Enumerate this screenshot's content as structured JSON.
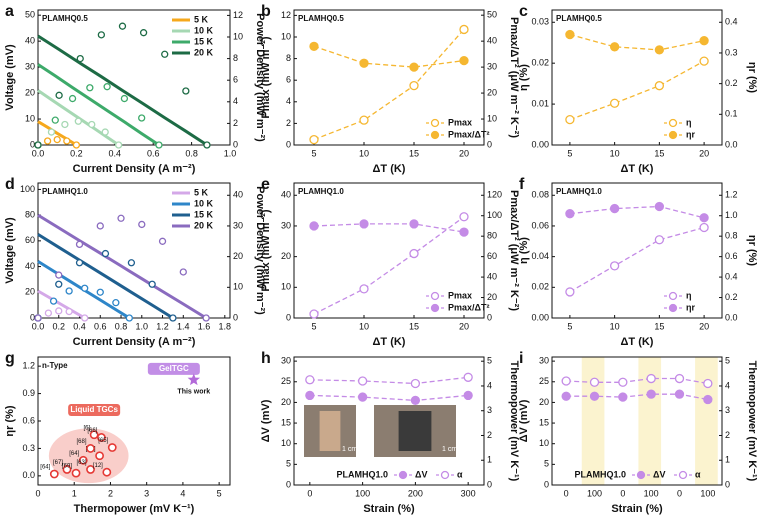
{
  "chart_data": [
    {
      "type": "line",
      "panel": "a",
      "annotation": "PLAMHQ0.5",
      "xlabel": "Current Density (A m⁻²)",
      "ylabel": "Voltage (mV)",
      "y2label": "Power Density (mW m⁻²)",
      "xlim": [
        0,
        1.0
      ],
      "xticks": [
        {
          "value": 0,
          "label": "0.0"
        },
        0.2,
        0.4,
        0.6,
        0.8,
        {
          "value": 1,
          "label": "1.0"
        }
      ],
      "ylim": [
        0,
        52
      ],
      "yticks": [
        0,
        10,
        20,
        30,
        40,
        50
      ],
      "y2lim": [
        0,
        12.5
      ],
      "y2ticks": [
        0,
        2,
        4,
        6,
        8,
        10,
        12
      ],
      "legend": "upper right",
      "series": [
        {
          "name": "5 K",
          "color": "#f6a81c",
          "line": "thick",
          "x": [
            0,
            0.05,
            0.1,
            0.15,
            0.2
          ],
          "values": [
            9,
            6.8,
            4.5,
            2.3,
            0
          ]
        },
        {
          "name": "10 K",
          "color": "#a6d8b3",
          "line": "thick",
          "x": [
            0,
            0.07,
            0.14,
            0.21,
            0.28,
            0.35,
            0.42
          ],
          "values": [
            21,
            17.5,
            14,
            10.5,
            7,
            3.5,
            0
          ]
        },
        {
          "name": "15 K",
          "color": "#3daa6a",
          "line": "thick",
          "x": [
            0,
            0.09,
            0.18,
            0.27,
            0.36,
            0.45,
            0.54,
            0.63
          ],
          "values": [
            31,
            26.6,
            22.1,
            17.7,
            13.3,
            8.9,
            4.4,
            0
          ]
        },
        {
          "name": "20 K",
          "color": "#1d6b45",
          "line": "thick",
          "x": [
            0,
            0.11,
            0.22,
            0.33,
            0.44,
            0.55,
            0.66,
            0.77,
            0.88
          ],
          "values": [
            42,
            36.8,
            31.5,
            26.3,
            21,
            15.8,
            10.5,
            5.3,
            0
          ]
        },
        {
          "color": "#f6a81c",
          "axis": "y2",
          "marker": "open",
          "line": "none",
          "x": [
            0,
            0.05,
            0.1,
            0.15,
            0.2
          ],
          "values": [
            0,
            0.37,
            0.5,
            0.37,
            0
          ]
        },
        {
          "color": "#a6d8b3",
          "axis": "y2",
          "marker": "open",
          "line": "none",
          "x": [
            0,
            0.07,
            0.14,
            0.21,
            0.28,
            0.35,
            0.42
          ],
          "values": [
            0,
            1.2,
            1.9,
            2.2,
            1.9,
            1.2,
            0
          ]
        },
        {
          "color": "#3daa6a",
          "axis": "y2",
          "marker": "open",
          "line": "none",
          "x": [
            0,
            0.09,
            0.18,
            0.27,
            0.36,
            0.45,
            0.54,
            0.63
          ],
          "values": [
            0,
            2.3,
            4.3,
            5.3,
            5.4,
            4.3,
            2.5,
            0
          ]
        },
        {
          "color": "#1d6b45",
          "axis": "y2",
          "marker": "open",
          "line": "none",
          "x": [
            0,
            0.11,
            0.22,
            0.33,
            0.44,
            0.55,
            0.66,
            0.77,
            0.88
          ],
          "values": [
            0,
            4.6,
            8,
            10.2,
            11,
            10.4,
            8.4,
            5,
            0
          ]
        }
      ]
    },
    {
      "type": "line",
      "panel": "b",
      "annotation": "PLAMHQ0.5",
      "xlabel": "ΔT (K)",
      "ylabel": "Pmax (mW m⁻²)",
      "y2label": "Pmax/ΔT² (μW m⁻² K⁻²)",
      "xlim": [
        3,
        22
      ],
      "xticks": [
        5,
        10,
        15,
        20
      ],
      "x": [
        5,
        10,
        15,
        20
      ],
      "ylim": [
        0,
        12.5
      ],
      "yticks": [
        0,
        2,
        4,
        6,
        8,
        10,
        12
      ],
      "y2lim": [
        0,
        52
      ],
      "y2ticks": [
        0,
        10,
        20,
        30,
        40,
        50
      ],
      "legend": "lower right",
      "series": [
        {
          "name": "Pmax",
          "color": "#f5b731",
          "line": "dashed",
          "marker": "open",
          "values": [
            0.5,
            2.3,
            5.5,
            10.7
          ]
        },
        {
          "name": "Pmax/ΔT²",
          "color": "#f5b731",
          "line": "dashed",
          "marker": "filled",
          "axis": "y2",
          "values": [
            38,
            31.5,
            30,
            32.5
          ]
        }
      ]
    },
    {
      "type": "line",
      "panel": "c",
      "annotation": "PLAMHQ0.5",
      "xlabel": "ΔT (K)",
      "ylabel": "η (%)",
      "y2label": "ηr (%)",
      "xlim": [
        3,
        22
      ],
      "xticks": [
        5,
        10,
        15,
        20
      ],
      "x": [
        5,
        10,
        15,
        20
      ],
      "ylim": [
        0,
        0.033
      ],
      "yticks": [
        {
          "value": 0,
          "label": "0.00"
        },
        {
          "value": 0.01,
          "label": "0.01"
        },
        {
          "value": 0.02,
          "label": "0.02"
        },
        {
          "value": 0.03,
          "label": "0.03"
        }
      ],
      "y2lim": [
        0,
        0.44
      ],
      "y2ticks": [
        {
          "value": 0,
          "label": "0.0"
        },
        0.1,
        0.2,
        0.3,
        0.4
      ],
      "legend": "lower right",
      "series": [
        {
          "name": "η",
          "color": "#f5b731",
          "line": "dashed",
          "marker": "open",
          "values": [
            0.0062,
            0.0102,
            0.0145,
            0.0205
          ]
        },
        {
          "name": "ηr",
          "color": "#f5b731",
          "line": "dashed",
          "marker": "filled",
          "axis": "y2",
          "values": [
            0.36,
            0.32,
            0.31,
            0.34
          ]
        }
      ]
    },
    {
      "type": "line",
      "panel": "d",
      "annotation": "PLAMHQ1.0",
      "xlabel": "Current Density (A m⁻²)",
      "ylabel": "Voltage (mV)",
      "y2label": "Power Density (mW m⁻²)",
      "xlim": [
        0,
        1.85
      ],
      "xticks": [
        {
          "value": 0,
          "label": "0.0"
        },
        0.2,
        0.4,
        0.6,
        0.8,
        {
          "value": 1,
          "label": "1.0"
        },
        1.2,
        1.4,
        1.6,
        1.8
      ],
      "ylim": [
        0,
        105
      ],
      "yticks": [
        0,
        20,
        40,
        60,
        80,
        100
      ],
      "y2lim": [
        0,
        44
      ],
      "y2ticks": [
        0,
        10,
        20,
        30,
        40
      ],
      "legend": "upper right",
      "series": [
        {
          "name": "5 K",
          "color": "#d4a8e8",
          "line": "thick",
          "x": [
            0,
            0.1,
            0.2,
            0.3,
            0.45
          ],
          "values": [
            21,
            16.3,
            11.7,
            7,
            0
          ]
        },
        {
          "name": "10 K",
          "color": "#2e86c9",
          "line": "thick",
          "x": [
            0,
            0.15,
            0.3,
            0.45,
            0.6,
            0.75,
            0.88
          ],
          "values": [
            44,
            36.5,
            29,
            21.5,
            14,
            6.5,
            0
          ]
        },
        {
          "name": "15 K",
          "color": "#1f5f8f",
          "line": "thick",
          "x": [
            0,
            0.2,
            0.4,
            0.65,
            0.9,
            1.1,
            1.3
          ],
          "values": [
            65,
            55,
            45,
            32.5,
            20,
            10,
            0
          ]
        },
        {
          "name": "20 K",
          "color": "#8a6bbf",
          "line": "thick",
          "x": [
            0,
            0.2,
            0.4,
            0.6,
            0.8,
            1.0,
            1.2,
            1.4,
            1.62
          ],
          "values": [
            80,
            70.1,
            60.2,
            50.4,
            40.5,
            30.6,
            20.7,
            10.9,
            0
          ]
        },
        {
          "color": "#d4a8e8",
          "axis": "y2",
          "marker": "open",
          "line": "none",
          "x": [
            0,
            0.1,
            0.2,
            0.3,
            0.45
          ],
          "values": [
            0,
            1.6,
            2.3,
            2.1,
            0
          ]
        },
        {
          "color": "#2e86c9",
          "axis": "y2",
          "marker": "open",
          "line": "none",
          "x": [
            0,
            0.15,
            0.3,
            0.45,
            0.6,
            0.75,
            0.88
          ],
          "values": [
            0,
            5.5,
            8.8,
            9.7,
            8.4,
            5,
            0
          ]
        },
        {
          "color": "#1f5f8f",
          "axis": "y2",
          "marker": "open",
          "line": "none",
          "x": [
            0,
            0.2,
            0.4,
            0.65,
            0.9,
            1.1,
            1.3
          ],
          "values": [
            0,
            11,
            18,
            21,
            18,
            11,
            0
          ]
        },
        {
          "color": "#8a6bbf",
          "axis": "y2",
          "marker": "open",
          "line": "none",
          "x": [
            0,
            0.2,
            0.4,
            0.6,
            0.8,
            1.0,
            1.2,
            1.4,
            1.62
          ],
          "values": [
            0,
            14,
            24,
            30,
            32.5,
            30.5,
            25,
            15,
            0
          ]
        }
      ]
    },
    {
      "type": "line",
      "panel": "e",
      "annotation": "PLAMHQ1.0",
      "xlabel": "ΔT (K)",
      "ylabel": "Pmax (mW m⁻²)",
      "y2label": "Pmax/ΔT² (μW m⁻² K⁻²)",
      "xlim": [
        3,
        22
      ],
      "xticks": [
        5,
        10,
        15,
        20
      ],
      "x": [
        5,
        10,
        15,
        20
      ],
      "ylim": [
        0,
        44
      ],
      "yticks": [
        0,
        10,
        20,
        30,
        40
      ],
      "y2lim": [
        0,
        132
      ],
      "y2ticks": [
        0,
        20,
        40,
        60,
        80,
        100,
        120
      ],
      "legend": "lower right",
      "series": [
        {
          "name": "Pmax",
          "color": "#c48be6",
          "line": "dashed",
          "marker": "open",
          "values": [
            1.3,
            9.5,
            21,
            33
          ]
        },
        {
          "name": "Pmax/ΔT²",
          "color": "#c48be6",
          "line": "dashed",
          "marker": "filled",
          "axis": "y2",
          "values": [
            90,
            92,
            92,
            84
          ]
        }
      ]
    },
    {
      "type": "line",
      "panel": "f",
      "annotation": "PLAMHQ1.0",
      "xlabel": "ΔT (K)",
      "ylabel": "η (%)",
      "y2label": "ηr (%)",
      "xlim": [
        3,
        22
      ],
      "xticks": [
        5,
        10,
        15,
        20
      ],
      "x": [
        5,
        10,
        15,
        20
      ],
      "ylim": [
        0,
        0.088
      ],
      "yticks": [
        {
          "value": 0,
          "label": "0.00"
        },
        {
          "value": 0.02,
          "label": "0.02"
        },
        {
          "value": 0.04,
          "label": "0.04"
        },
        {
          "value": 0.06,
          "label": "0.06"
        },
        {
          "value": 0.08,
          "label": "0.08"
        }
      ],
      "y2lim": [
        0,
        1.32
      ],
      "y2ticks": [
        {
          "value": 0,
          "label": "0.0"
        },
        0.2,
        0.4,
        0.6,
        0.8,
        {
          "value": 1,
          "label": "1.0"
        },
        1.2
      ],
      "legend": "lower right",
      "series": [
        {
          "name": "η",
          "color": "#c48be6",
          "line": "dashed",
          "marker": "open",
          "values": [
            0.017,
            0.034,
            0.051,
            0.059
          ]
        },
        {
          "name": "ηr",
          "color": "#c48be6",
          "line": "dashed",
          "marker": "filled",
          "axis": "y2",
          "values": [
            1.02,
            1.07,
            1.09,
            0.98
          ]
        }
      ]
    },
    {
      "type": "scatter",
      "panel": "g",
      "annotation": "n-Type",
      "xlabel": "Thermopower (mV K⁻¹)",
      "ylabel": "ηr (%)",
      "xlim": [
        0,
        5.3
      ],
      "xticks": [
        0,
        1,
        2,
        3,
        4,
        5
      ],
      "ylim": [
        -0.1,
        1.3
      ],
      "yticks": [
        {
          "value": 0,
          "label": "0.0"
        },
        0.3,
        0.6,
        0.9,
        1.2
      ],
      "color": "#e53935",
      "x": [
        0.45,
        0.8,
        1.05,
        1.25,
        1.45,
        1.7,
        1.55,
        1.75,
        1.45,
        2.05,
        1.9
      ],
      "values": [
        0.02,
        0.07,
        0.03,
        0.17,
        0.07,
        0.22,
        0.45,
        0.42,
        0.3,
        0.31,
        0.04
      ],
      "point_labels": [
        "[64]",
        "[67]",
        "[69]",
        "[64]",
        "[63]",
        "[64]",
        "[6]",
        "[66]",
        "[68]",
        "[65]",
        "[12]"
      ],
      "group_labels": [
        "GelTGC",
        "Liquid TGCs"
      ],
      "highlight_x": 4.3,
      "highlight_y": 1.05,
      "highlight_label": "This work",
      "highlight_color": "#b36ad9"
    },
    {
      "type": "line",
      "panel": "h",
      "xlabel": "Strain (%)",
      "ylabel": "ΔV (mV)",
      "y2label": "Thermopower (mV K⁻¹)",
      "xlim": [
        -30,
        330
      ],
      "xticks": [
        0,
        100,
        200,
        300
      ],
      "x": [
        0,
        100,
        200,
        300
      ],
      "ylim": [
        0,
        31
      ],
      "yticks": [
        0,
        5,
        10,
        15,
        20,
        25,
        30
      ],
      "y2lim": [
        0,
        5.17
      ],
      "y2ticks": [
        0,
        1,
        2,
        3,
        4,
        5
      ],
      "legend": "lower right",
      "legend_title": "PLAMHQ1.0",
      "inset_labels": [
        "1 cm",
        "1 cm"
      ],
      "series": [
        {
          "name": "ΔV",
          "color": "#c48be6",
          "line": "dashed",
          "marker": "filled",
          "values": [
            21.7,
            21.3,
            20.5,
            21.7
          ]
        },
        {
          "name": "α",
          "color": "#c48be6",
          "line": "dashed",
          "marker": "open",
          "axis": "y2",
          "values": [
            4.25,
            4.2,
            4.1,
            4.35
          ]
        }
      ]
    },
    {
      "type": "line",
      "panel": "i",
      "xlabel": "Strain (%)",
      "ylabel": "ΔV (mV)",
      "y2label": "Thermopower (mV K⁻¹)",
      "categories": [
        "0",
        "100",
        "0",
        "100",
        "0",
        "100"
      ],
      "shade_alternate": true,
      "ylim": [
        0,
        31
      ],
      "yticks": [
        0,
        5,
        10,
        15,
        20,
        25,
        30
      ],
      "y2lim": [
        0,
        5.17
      ],
      "y2ticks": [
        0,
        1,
        2,
        3,
        4,
        5
      ],
      "legend": "lower right",
      "legend_title": "PLAMHQ1.0",
      "series": [
        {
          "name": "ΔV",
          "color": "#c48be6",
          "line": "dashed",
          "marker": "filled",
          "values": [
            21.5,
            21.5,
            21.3,
            22,
            22,
            20.7
          ]
        },
        {
          "name": "α",
          "color": "#c48be6",
          "line": "dashed",
          "marker": "open",
          "axis": "y2",
          "values": [
            4.2,
            4.15,
            4.15,
            4.3,
            4.3,
            4.1
          ]
        }
      ]
    }
  ]
}
